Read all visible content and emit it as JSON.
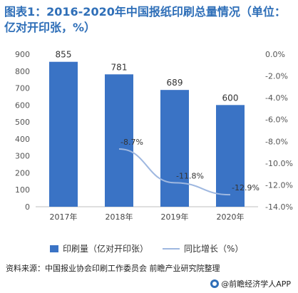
{
  "title": "图表1：2016-2020年中国报纸印刷总量情况（单位：亿对开印张，%）",
  "source": "资料来源：中国报业协会印刷工作委员会 前瞻产业研究院整理",
  "credit": "@前瞻经济学人APP",
  "colors": {
    "bar": "#3a73c5",
    "line": "#9fb8e0",
    "title": "#2f6fb8"
  },
  "chart_data": {
    "type": "bar",
    "title": "图表1：2016-2020年中国报纸印刷总量情况（单位：亿对开印张，%）",
    "categories": [
      "2017年",
      "2018年",
      "2019年",
      "2020年"
    ],
    "series": [
      {
        "name": "印刷量（亿对开印张）",
        "type": "bar",
        "axis": "left",
        "values": [
          855,
          781,
          689,
          600
        ],
        "labels": [
          "855",
          "781",
          "689",
          "600"
        ]
      },
      {
        "name": "同比增长（%）",
        "type": "line",
        "axis": "right",
        "values": [
          null,
          -8.7,
          -11.8,
          -12.9
        ],
        "labels": [
          "",
          "-8.7%",
          "-11.8%",
          "-12.9%"
        ]
      }
    ],
    "y_left": {
      "min": 0,
      "max": 900,
      "ticks": [
        0,
        100,
        200,
        300,
        400,
        500,
        600,
        700,
        800,
        900
      ]
    },
    "y_right": {
      "min": -14,
      "max": 0,
      "ticks": [
        0,
        -2,
        -4,
        -6,
        -8,
        -10,
        -12,
        -14
      ],
      "tick_labels": [
        "0.0%",
        "-2.0%",
        "-4.0%",
        "-6.0%",
        "-8.0%",
        "-10.0%",
        "-12.0%",
        "-14.0%"
      ]
    },
    "grid": false,
    "legend_position": "bottom"
  }
}
